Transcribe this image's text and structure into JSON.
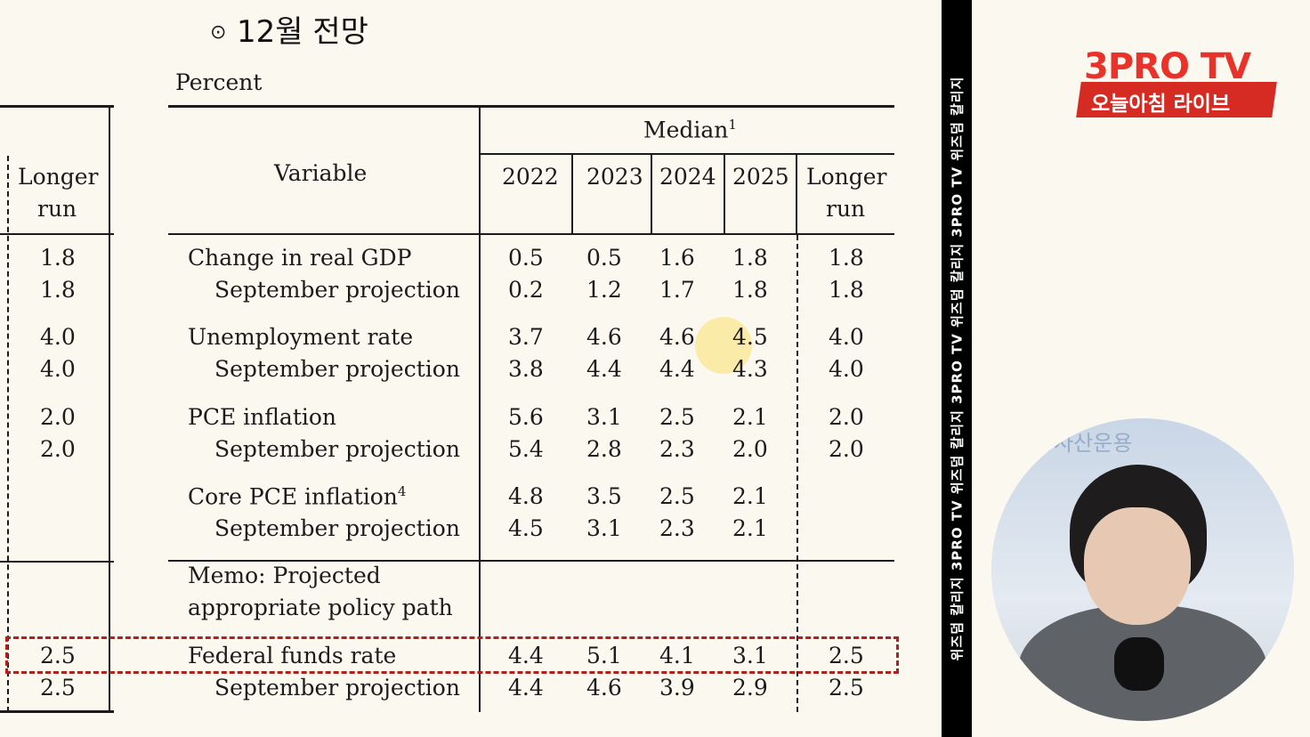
{
  "slide": {
    "title_bullet": "⊙",
    "title": "12월 전망",
    "unit": "Percent"
  },
  "left_partial": {
    "header": [
      "Longer",
      "run"
    ],
    "values": [
      "1.8",
      "1.8",
      "4.0",
      "4.0",
      "2.0",
      "2.0",
      "2.5",
      "2.5"
    ]
  },
  "table": {
    "variable_header": "Variable",
    "median_header": "Median",
    "median_sup": "1",
    "year_columns": [
      "2022",
      "2023",
      "2024",
      "2025"
    ],
    "longer_run_header": [
      "Longer",
      "run"
    ],
    "rows": [
      {
        "label": "Change in real GDP",
        "values": [
          "0.5",
          "0.5",
          "1.6",
          "1.8",
          "1.8"
        ]
      },
      {
        "label": "September projection",
        "values": [
          "0.2",
          "1.2",
          "1.7",
          "1.8",
          "1.8"
        ]
      },
      {
        "label": "Unemployment rate",
        "values": [
          "3.7",
          "4.6",
          "4.6",
          "4.5",
          "4.0"
        ]
      },
      {
        "label": "September projection",
        "values": [
          "3.8",
          "4.4",
          "4.4",
          "4.3",
          "4.0"
        ]
      },
      {
        "label": "PCE inflation",
        "values": [
          "5.6",
          "3.1",
          "2.5",
          "2.1",
          "2.0"
        ]
      },
      {
        "label": "September projection",
        "values": [
          "5.4",
          "2.8",
          "2.3",
          "2.0",
          "2.0"
        ]
      },
      {
        "label": "Core PCE inflation",
        "sup": "4",
        "values": [
          "4.8",
          "3.5",
          "2.5",
          "2.1",
          ""
        ]
      },
      {
        "label": "September projection",
        "values": [
          "4.5",
          "3.1",
          "2.3",
          "2.1",
          ""
        ]
      },
      {
        "label": "Federal funds rate",
        "values": [
          "4.4",
          "5.1",
          "4.1",
          "3.1",
          "2.5"
        ]
      },
      {
        "label": "September projection",
        "values": [
          "4.4",
          "4.6",
          "3.9",
          "2.9",
          "2.5"
        ]
      }
    ],
    "memo": [
      "Memo: Projected",
      "appropriate policy path"
    ]
  },
  "channel": {
    "logo": "3PRO TV",
    "program": "오늘아침 라이브",
    "side_strip": "위즈덤 칼리지   3PRO TV   위즈덤 칼리지   3PRO TV   위즈덤 칼리지   3PRO TV   위즈덤 칼리지",
    "background_sign": "증사산운용"
  },
  "colors": {
    "background": "#fbf8f0",
    "ink": "#1b1b1b",
    "highlight_box": "#b0201c",
    "brand_red": "#e8322a"
  }
}
